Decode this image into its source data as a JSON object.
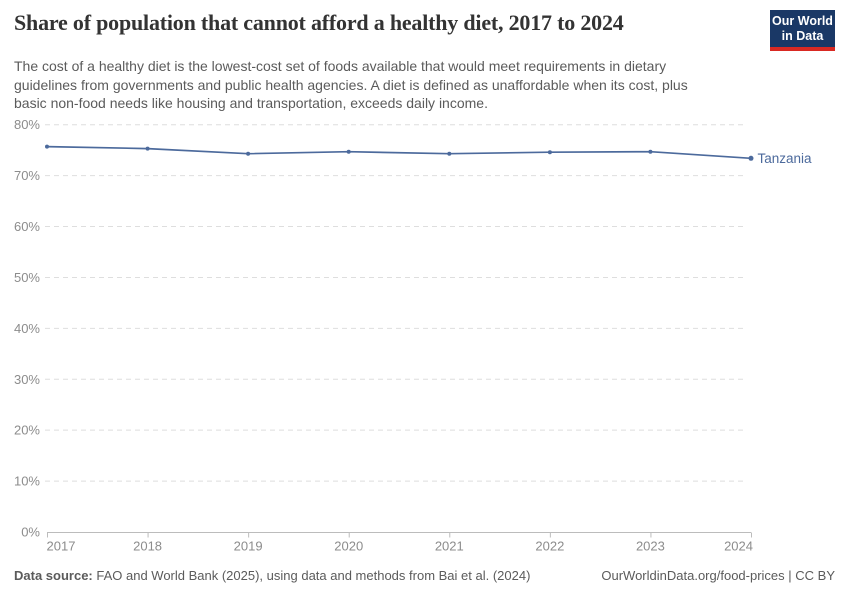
{
  "header": {
    "title": "Share of population that cannot afford a healthy diet, 2017 to 2024",
    "subtitle_lines": [
      "The cost of a healthy diet is the lowest-cost set of foods available that would meet requirements in dietary",
      "guidelines from governments and public health agencies. A diet is defined as unaffordable when its cost, plus",
      "basic non-food needs like housing and transportation, exceeds daily income."
    ],
    "logo": {
      "line1": "Our World",
      "line2": "in Data",
      "bg_color": "#1a3866",
      "accent_color": "#d92922"
    }
  },
  "chart_data": {
    "type": "line",
    "title": "Share of population that cannot afford a healthy diet, 2017 to 2024",
    "x": [
      2017,
      2018,
      2019,
      2020,
      2021,
      2022,
      2023,
      2024
    ],
    "series": [
      {
        "name": "Tanzania",
        "color": "#4c6a9c",
        "values": [
          75.7,
          75.3,
          74.3,
          74.7,
          74.3,
          74.6,
          74.7,
          73.4
        ]
      }
    ],
    "xlabel": "",
    "ylabel": "",
    "ylim": [
      0,
      80
    ],
    "yticks": [
      0,
      10,
      20,
      30,
      40,
      50,
      60,
      70,
      80
    ],
    "ytick_suffix": "%",
    "grid": "horizontal-dashed",
    "grid_color": "#dedede",
    "axis_color": "#bcbcbc",
    "tick_label_color": "#8c8c8c",
    "legend": "line-end-label"
  },
  "footer": {
    "datasource_label": "Data source:",
    "datasource_text": " FAO and World Bank (2025), using data and methods from Bai et al. (2024)",
    "link_text": "OurWorldinData.org/food-prices | CC BY"
  }
}
